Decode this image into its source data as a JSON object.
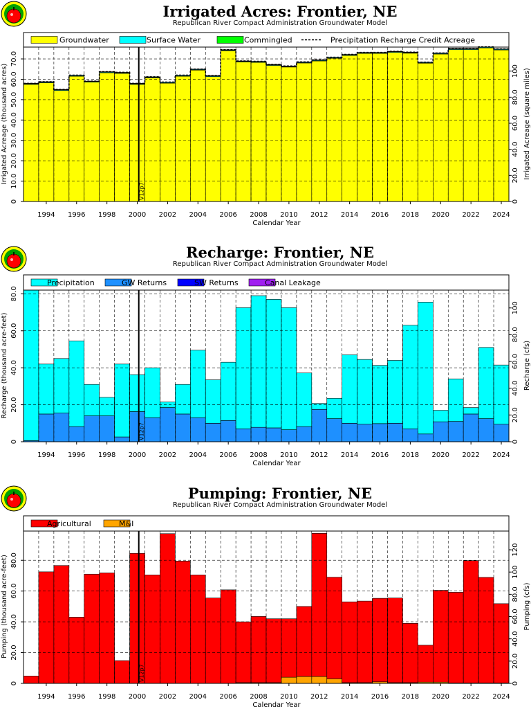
{
  "chart_data": [
    {
      "type": "bar",
      "title": "Irrigated Acres: Frontier, NE",
      "subtitle": "Republican River Compact Administration Groundwater Model",
      "xlabel": "Calendar Year",
      "ylabel": "Irrigated Acreage (thousand acres)",
      "ylabel_right": "Irrigated Acreage (square miles)",
      "xlim": [
        1993,
        2025
      ],
      "ylim": [
        0,
        75.8
      ],
      "yticks": [
        0,
        10,
        20,
        30,
        40,
        50,
        60,
        70
      ],
      "ytick_labels": [
        "0",
        "10.0",
        "20.0",
        "30.0",
        "40.0",
        "50.0",
        "60.0",
        "70.0"
      ],
      "y2_per_unit": 1.5625,
      "y2ticks": [
        0,
        20,
        40,
        60,
        80,
        100
      ],
      "y2tick_labels": [
        "0",
        "20.0",
        "40.0",
        "60.0",
        "80.0",
        "100"
      ],
      "xticks": [
        1994,
        1996,
        1998,
        2000,
        2002,
        2004,
        2006,
        2008,
        2010,
        2012,
        2014,
        2016,
        2018,
        2020,
        2022,
        2024
      ],
      "vline": {
        "x": 2000.6,
        "label": "V12p7"
      },
      "stacked": true,
      "legend": [
        {
          "label": "Groundwater",
          "color": "#ffff00",
          "kind": "box"
        },
        {
          "label": "Surface Water",
          "color": "#00ffff",
          "kind": "box"
        },
        {
          "label": "Commingled",
          "color": "#00ff00",
          "kind": "box"
        },
        {
          "label": "Precipitation Recharge Credit Acreage",
          "color": "#000000",
          "kind": "dash"
        }
      ],
      "categories": [
        1993,
        1994,
        1995,
        1996,
        1997,
        1998,
        1999,
        2000,
        2001,
        2002,
        2003,
        2004,
        2005,
        2006,
        2007,
        2008,
        2009,
        2010,
        2011,
        2012,
        2013,
        2014,
        2015,
        2016,
        2017,
        2018,
        2019,
        2020,
        2021,
        2022,
        2023,
        2024
      ],
      "series": [
        {
          "name": "Groundwater",
          "color": "#ffff00",
          "values": [
            57.5,
            58.3,
            54.5,
            61.5,
            58.6,
            63.2,
            62.9,
            57.5,
            60.7,
            58.1,
            61.5,
            64.5,
            61.3,
            74.0,
            68.5,
            68.3,
            66.8,
            66.0,
            68.0,
            69.0,
            70.3,
            71.7,
            72.7,
            72.7,
            73.2,
            72.8,
            67.9,
            72.4,
            74.6,
            74.6,
            75.4,
            74.4
          ]
        },
        {
          "name": "Surface Water",
          "color": "#00ffff",
          "values": [
            0.3,
            0.3,
            0.3,
            0.3,
            0.3,
            0.3,
            0.3,
            0.3,
            0.3,
            0.3,
            0.3,
            0.3,
            0.3,
            0.3,
            0.3,
            0.3,
            0.3,
            0.3,
            0.3,
            0.3,
            0.3,
            0.3,
            0.3,
            0.3,
            0.3,
            0.3,
            0.3,
            0.3,
            0.3,
            0.3,
            0.3,
            0.3
          ]
        },
        {
          "name": "Commingled",
          "color": "#00ff00",
          "values": [
            0.2,
            0.2,
            0.2,
            0.2,
            0.2,
            0.2,
            0.2,
            0.2,
            0.2,
            0.2,
            0.2,
            0.2,
            0.2,
            0.2,
            0.2,
            0.2,
            0.2,
            0.2,
            0.2,
            0.2,
            0.2,
            0.2,
            0.2,
            0.2,
            0.2,
            0.2,
            0.2,
            0.2,
            0.2,
            0.2,
            0.2,
            0.2
          ]
        }
      ],
      "line": {
        "name": "Precipitation Recharge Credit Acreage",
        "values": [
          58.0,
          58.8,
          55.0,
          62.0,
          59.1,
          63.7,
          63.4,
          58.0,
          61.2,
          58.6,
          62.0,
          65.0,
          61.8,
          74.5,
          69.0,
          68.8,
          67.3,
          66.5,
          68.5,
          69.5,
          70.8,
          72.2,
          73.2,
          73.2,
          73.7,
          73.3,
          68.4,
          72.9,
          75.1,
          75.1,
          75.9,
          74.9
        ]
      }
    },
    {
      "type": "bar",
      "title": "Recharge: Frontier, NE",
      "subtitle": "Republican River Compact Administration Groundwater Model",
      "xlabel": "Calendar Year",
      "ylabel": "Recharge (thousand acre-feet)",
      "ylabel_right": "Recharge (cfs)",
      "xlim": [
        1993,
        2025
      ],
      "ylim": [
        0,
        82
      ],
      "yticks": [
        0,
        20,
        40,
        60,
        80
      ],
      "ytick_labels": [
        "0",
        "20.0",
        "40.0",
        "60.0",
        "80.0"
      ],
      "y2_per_unit": 1.382,
      "y2ticks": [
        0,
        20,
        40,
        60,
        80,
        100
      ],
      "y2tick_labels": [
        "0",
        "20.0",
        "40.0",
        "60.0",
        "80.0",
        "100"
      ],
      "xticks": [
        1994,
        1996,
        1998,
        2000,
        2002,
        2004,
        2006,
        2008,
        2010,
        2012,
        2014,
        2016,
        2018,
        2020,
        2022,
        2024
      ],
      "vline": {
        "x": 2000.6,
        "label": "V12p7"
      },
      "stacked": true,
      "legend": [
        {
          "label": "Precipitation",
          "color": "#00ffff",
          "kind": "box"
        },
        {
          "label": "GW Returns",
          "color": "#1e90ff",
          "kind": "box"
        },
        {
          "label": "SW Returns",
          "color": "#0000ff",
          "kind": "box"
        },
        {
          "label": "Canal Leakage",
          "color": "#a020f0",
          "kind": "box"
        }
      ],
      "categories": [
        1993,
        1994,
        1995,
        1996,
        1997,
        1998,
        1999,
        2000,
        2001,
        2002,
        2003,
        2004,
        2005,
        2006,
        2007,
        2008,
        2009,
        2010,
        2011,
        2012,
        2013,
        2014,
        2015,
        2016,
        2017,
        2018,
        2019,
        2020,
        2021,
        2022,
        2023,
        2024
      ],
      "series": [
        {
          "name": "GW Returns",
          "color": "#1e90ff",
          "values": [
            0.6,
            15.0,
            15.5,
            8.2,
            14.0,
            14.0,
            2.6,
            16.3,
            13.0,
            18.5,
            15.0,
            13.0,
            10.0,
            11.5,
            7.0,
            7.8,
            7.5,
            6.5,
            8.2,
            17.5,
            12.5,
            10.0,
            9.5,
            9.8,
            10.0,
            7.0,
            4.2,
            10.8,
            11.0,
            15.0,
            12.5,
            9.5
          ]
        },
        {
          "name": "SW Returns",
          "color": "#0000ff",
          "values": [
            0,
            0,
            0,
            0,
            0,
            0,
            0,
            0,
            0,
            0,
            0,
            0,
            0,
            0,
            0,
            0,
            0,
            0,
            0,
            0,
            0,
            0,
            0,
            0,
            0,
            0,
            0,
            0,
            0,
            0,
            0,
            0
          ]
        },
        {
          "name": "Canal Leakage",
          "color": "#a020f0",
          "values": [
            0,
            0,
            0,
            0,
            0,
            0,
            0,
            0,
            0,
            0,
            0,
            0,
            0,
            0,
            0,
            0,
            0,
            0,
            0,
            0,
            0,
            0,
            0,
            0,
            0,
            0,
            0,
            0,
            0,
            0,
            0,
            0
          ]
        },
        {
          "name": "Precipitation",
          "color": "#00ffff",
          "values": [
            81.4,
            27.0,
            29.5,
            46.3,
            17.0,
            10.0,
            39.4,
            20.0,
            27.0,
            3.0,
            16.0,
            36.5,
            23.5,
            31.5,
            65.5,
            71.2,
            69.5,
            66.0,
            29.0,
            3.2,
            11.0,
            37.0,
            35.0,
            31.5,
            34.0,
            56.0,
            71.3,
            6.2,
            23.0,
            3.5,
            38.5,
            32.0
          ]
        }
      ]
    },
    {
      "type": "bar",
      "title": "Pumping: Frontier, NE",
      "subtitle": "Republican River Compact Administration Groundwater Model",
      "xlabel": "Calendar Year",
      "ylabel": "Pumping (thousand acre-feet)",
      "ylabel_right": "Pumping (cfs)",
      "xlim": [
        1993,
        2025
      ],
      "ylim": [
        0,
        99
      ],
      "yticks": [
        0,
        20,
        40,
        60,
        80
      ],
      "ytick_labels": [
        "0",
        "20.0",
        "40.0",
        "60.0",
        "80.0"
      ],
      "y2_per_unit": 1.382,
      "y2ticks": [
        0,
        20,
        40,
        60,
        80,
        100,
        120
      ],
      "y2tick_labels": [
        "0",
        "20.0",
        "40.0",
        "60.0",
        "80.0",
        "100",
        "120"
      ],
      "xticks": [
        1994,
        1996,
        1998,
        2000,
        2002,
        2004,
        2006,
        2008,
        2010,
        2012,
        2014,
        2016,
        2018,
        2020,
        2022,
        2024
      ],
      "vline": {
        "x": 2000.6,
        "label": "V12p7"
      },
      "stacked": true,
      "legend": [
        {
          "label": "Agricultural",
          "color": "#ff0000",
          "kind": "box"
        },
        {
          "label": "M&I",
          "color": "#ffa500",
          "kind": "box"
        }
      ],
      "categories": [
        1993,
        1994,
        1995,
        1996,
        1997,
        1998,
        1999,
        2000,
        2001,
        2002,
        2003,
        2004,
        2005,
        2006,
        2007,
        2008,
        2009,
        2010,
        2011,
        2012,
        2013,
        2014,
        2015,
        2016,
        2017,
        2018,
        2019,
        2020,
        2021,
        2022,
        2023,
        2024
      ],
      "series": [
        {
          "name": "M&I",
          "color": "#ffa500",
          "values": [
            0,
            0,
            0,
            0,
            0,
            0,
            0,
            0,
            0,
            0,
            0,
            0,
            0,
            0,
            0.5,
            0.5,
            0.5,
            4.0,
            4.5,
            4.5,
            3.0,
            0.5,
            0.5,
            1.0,
            0.5,
            0.5,
            0.8,
            0.8,
            0.3,
            0.3,
            0.3,
            0.3
          ]
        },
        {
          "name": "Agricultural",
          "color": "#ff0000",
          "values": [
            4.8,
            72.5,
            76.6,
            43.0,
            71.0,
            71.8,
            14.8,
            84.5,
            70.5,
            97.3,
            79.5,
            70.5,
            55.5,
            60.8,
            39.5,
            43.0,
            41.5,
            38.0,
            45.5,
            93.0,
            66.0,
            52.5,
            53.0,
            54.3,
            55.0,
            38.5,
            24.0,
            59.7,
            58.9,
            79.5,
            68.6,
            51.5
          ]
        }
      ]
    }
  ]
}
